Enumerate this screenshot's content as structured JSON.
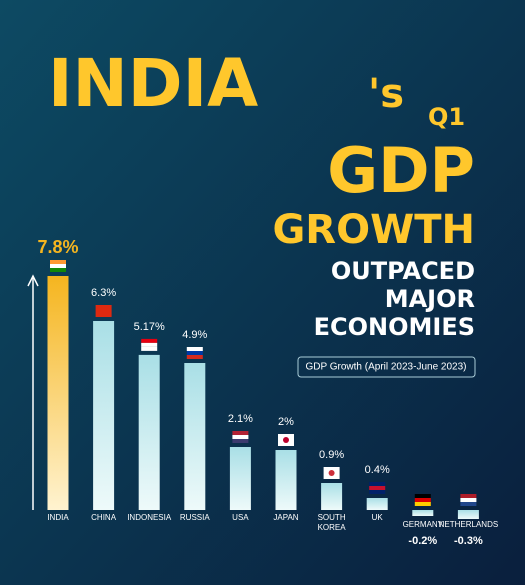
{
  "chart_data": {
    "type": "bar",
    "title_parts": [
      "INDIA",
      "'s",
      "Q1",
      "GDP",
      "GROWTH"
    ],
    "subtitle_lines": [
      "OUTPACED",
      "MAJOR",
      "ECONOMIES"
    ],
    "legend_label": "GDP Growth (April 2023-June 2023)",
    "categories": [
      "INDIA",
      "CHINA",
      "INDONESIA",
      "RUSSIA",
      "USA",
      "JAPAN",
      "SOUTH KOREA",
      "UK",
      "GERMANY",
      "NETHERLANDS"
    ],
    "values": [
      7.8,
      6.3,
      5.17,
      4.9,
      2.1,
      2,
      0.9,
      0.4,
      -0.2,
      -0.3
    ],
    "value_labels": [
      "7.8%",
      "6.3%",
      "5.17%",
      "4.9%",
      "2.1%",
      "2%",
      "0.9%",
      "0.4%",
      "-0.2%",
      "-0.3%"
    ],
    "highlight_color": "#f5b51f",
    "color": "#cdeef0"
  }
}
